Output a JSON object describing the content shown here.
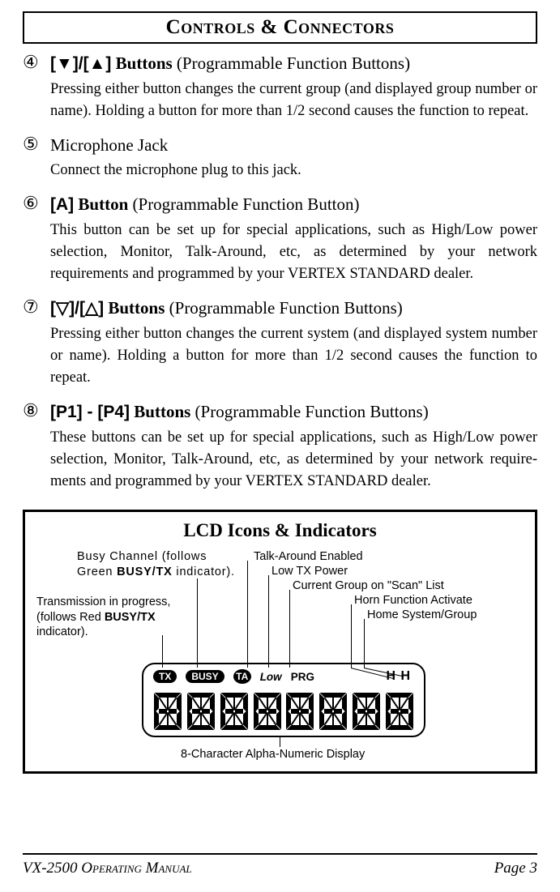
{
  "page_title": "Controls & Connectors",
  "items": [
    {
      "num": "④",
      "head_prefix": "[▼]/[▲]",
      "head_bold": " Buttons",
      "head_suffix": " (Programmable Function Buttons)",
      "head_sans": true,
      "body": "Pressing either button changes the current group (and displayed group number or name). Holding a button for more than 1/2 second causes the function to repeat."
    },
    {
      "num": "⑤",
      "head_prefix": "",
      "head_bold": "",
      "head_suffix": "Microphone Jack",
      "head_sans": false,
      "body": "Connect the microphone plug to this jack."
    },
    {
      "num": "⑥",
      "head_prefix": "[A]",
      "head_bold": " Button",
      "head_suffix": " (Programmable Function Button)",
      "head_sans": true,
      "body": "This button can be set up for special applications, such as High/Low power selection, Monitor, Talk-Around, etc, as determined by your network requirements and programmed by your VERTEX STANDARD dealer."
    },
    {
      "num": "⑦",
      "head_prefix": "[▽]/[△]",
      "head_bold": " Buttons",
      "head_suffix": " (Programmable Function Buttons)",
      "head_sans": true,
      "body": "Pressing either button changes the current system (and displayed system number or name). Holding a button for more than 1/2 second causes the function to repeat."
    },
    {
      "num": "⑧",
      "head_prefix": "[P1] - [P4]",
      "head_bold": " Buttons",
      "head_suffix": " (Programmable Function Buttons)",
      "head_sans": true,
      "body": "These buttons can be set up for special applications, such as High/Low power selection, Monitor, Talk-Around, etc, as determined by your network require­ments and programmed by your VERTEX STANDARD dealer."
    }
  ],
  "lcd": {
    "title": "LCD Icons & Indicators",
    "labels": {
      "busy": "Busy Channel (follows Green BUSY/TX indicator).",
      "busy_html_pre": "Busy Channel (follows Green ",
      "busy_html_bold": "BUSY/TX",
      "busy_html_post": " indicator).",
      "tx_pre": "Transmission in progress, (follows Red ",
      "tx_bold": "BUSY/TX",
      "tx_post": " indicator).",
      "ta": "Talk-Around Enabled",
      "low": "Low TX Power",
      "prg": "Current Group on \"Scan\" List",
      "horn": "Horn Function Activate",
      "home": "Home System/Group",
      "display8": "8-Character Alpha-Numeric Display"
    },
    "icons": {
      "tx": "TX",
      "busy": "BUSY",
      "ta": "TA",
      "low": "Low",
      "prg": "PRG",
      "hh": "H H"
    }
  },
  "footer": {
    "left": "VX-2500 Operating Manual",
    "right": "Page 3"
  },
  "colors": {
    "text": "#000000",
    "bg": "#ffffff",
    "border": "#000000"
  }
}
